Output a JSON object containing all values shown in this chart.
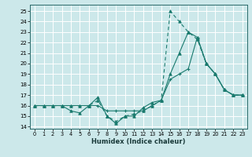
{
  "xlabel": "Humidex (Indice chaleur)",
  "bg_color": "#cce8ea",
  "line_color": "#1a7a6e",
  "grid_color": "#ffffff",
  "xlim": [
    -0.5,
    23.5
  ],
  "ylim": [
    13.8,
    25.6
  ],
  "yticks": [
    14,
    15,
    16,
    17,
    18,
    19,
    20,
    21,
    22,
    23,
    24,
    25
  ],
  "xticks": [
    0,
    1,
    2,
    3,
    4,
    5,
    6,
    7,
    8,
    9,
    10,
    11,
    12,
    13,
    14,
    15,
    16,
    17,
    18,
    19,
    20,
    21,
    22,
    23
  ],
  "series": [
    {
      "x": [
        0,
        1,
        2,
        3,
        4,
        5,
        6,
        7,
        8,
        9,
        10,
        11,
        12,
        13,
        14,
        15,
        16,
        17,
        18,
        19,
        20,
        21,
        22,
        23
      ],
      "y": [
        16,
        16,
        16,
        16,
        16,
        16,
        16,
        16,
        15.5,
        15.5,
        15.5,
        15.5,
        15.5,
        16,
        16.5,
        18.5,
        19,
        19.5,
        22.5,
        20,
        19,
        17.5,
        17,
        17
      ],
      "linestyle": "-",
      "marker": "+"
    },
    {
      "x": [
        0,
        1,
        2,
        3,
        4,
        5,
        6,
        7,
        8,
        9,
        10,
        11,
        12,
        13,
        14,
        15,
        16,
        17,
        18,
        19,
        20,
        21,
        22,
        23
      ],
      "y": [
        16,
        16,
        16,
        16,
        16,
        16,
        16,
        16.5,
        15,
        14.5,
        15,
        15.2,
        15.5,
        16,
        16.5,
        25,
        24,
        23,
        22.3,
        20,
        19,
        17.5,
        17,
        17
      ],
      "linestyle": "--",
      "marker": "^"
    },
    {
      "x": [
        0,
        1,
        2,
        3,
        4,
        5,
        6,
        7,
        8,
        9,
        10,
        11,
        12,
        13,
        14,
        15,
        16,
        17,
        18,
        19,
        20,
        21,
        22,
        23
      ],
      "y": [
        16,
        16,
        16,
        16,
        15.5,
        15.3,
        16,
        16.8,
        15,
        14.3,
        15,
        15,
        15.8,
        16.3,
        16.5,
        19,
        21,
        23,
        22.5,
        20,
        19,
        17.5,
        17,
        17
      ],
      "linestyle": "-",
      "marker": "^"
    }
  ]
}
